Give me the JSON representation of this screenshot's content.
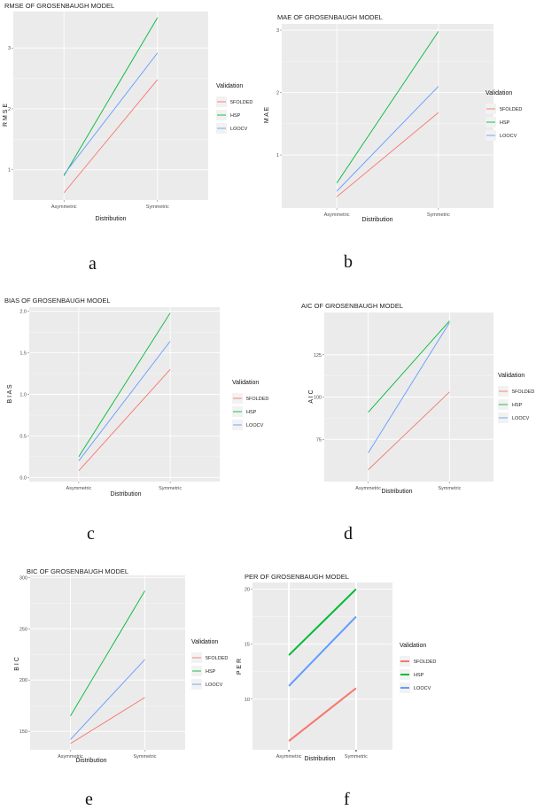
{
  "colors": {
    "FOLDED": "#f8766d",
    "HSP": "#00ba38",
    "LOOCV": "#619cff"
  },
  "chart_data": [
    {
      "type": "line",
      "title": "RMSE OF GROSENBAUGH MODEL",
      "xlabel": "Distribution",
      "ylabel": "R M S E",
      "categories": [
        "Asymmetric",
        "Symmetric"
      ],
      "ylim": [
        0.5,
        3.6
      ],
      "yticks": [
        1,
        2,
        3
      ],
      "yticklabels": [
        "1",
        "2",
        "3"
      ],
      "legend_title": "Validation",
      "series": [
        {
          "name": "5FOLDED",
          "values": [
            0.62,
            2.48
          ]
        },
        {
          "name": "HSP",
          "values": [
            0.9,
            3.5
          ]
        },
        {
          "name": "LOOCV",
          "values": [
            0.92,
            2.92
          ]
        }
      ],
      "caption": "a"
    },
    {
      "type": "line",
      "title": "MAE OF GROSENBAUGH MODEL",
      "xlabel": "Distribution",
      "ylabel": "M A E",
      "categories": [
        "Asymmetric",
        "Symmetric"
      ],
      "ylim": [
        0.15,
        3.1
      ],
      "yticks": [
        1,
        2,
        3
      ],
      "yticklabels": [
        "1",
        "2",
        "3"
      ],
      "legend_title": "Validation",
      "series": [
        {
          "name": "5FOLDED",
          "values": [
            0.33,
            1.68
          ]
        },
        {
          "name": "HSP",
          "values": [
            0.55,
            2.98
          ]
        },
        {
          "name": "LOOCV",
          "values": [
            0.42,
            2.1
          ]
        }
      ],
      "caption": "b"
    },
    {
      "type": "line",
      "title": "BIAS OF GROSENBAUGH MODEL",
      "xlabel": "Distribution",
      "ylabel": "B I A S",
      "categories": [
        "Asymmetric",
        "Symmetric"
      ],
      "ylim": [
        -0.05,
        2.05
      ],
      "yticks": [
        0,
        0.5,
        1,
        1.5,
        2
      ],
      "yticklabels": [
        "0.0",
        "0.5",
        "1.0",
        "1.5",
        "2.0"
      ],
      "legend_title": "Validation",
      "series": [
        {
          "name": "5FOLDED",
          "values": [
            0.08,
            1.3
          ]
        },
        {
          "name": "HSP",
          "values": [
            0.25,
            1.98
          ]
        },
        {
          "name": "LOOCV",
          "values": [
            0.2,
            1.64
          ]
        }
      ],
      "caption": "c"
    },
    {
      "type": "line",
      "title": "AIC OF GROSENBAUGH MODEL",
      "xlabel": "Distribution",
      "ylabel": "A I C",
      "categories": [
        "Asymmetric",
        "Symmetric"
      ],
      "ylim": [
        50,
        150
      ],
      "yticks": [
        75,
        100,
        125
      ],
      "yticklabels": [
        "75",
        "100",
        "125"
      ],
      "legend_title": "Validation",
      "series": [
        {
          "name": "5FOLDED",
          "values": [
            57,
            103
          ]
        },
        {
          "name": "HSP",
          "values": [
            91,
            145
          ]
        },
        {
          "name": "LOOCV",
          "values": [
            67,
            144
          ]
        }
      ],
      "caption": "d"
    },
    {
      "type": "line",
      "title": "BIC OF GROSENBAUGH MODEL",
      "xlabel": "Distribution",
      "ylabel": "B I C",
      "categories": [
        "Asymmetric",
        "Symmetric"
      ],
      "ylim": [
        132,
        302
      ],
      "yticks": [
        150,
        200,
        250,
        300
      ],
      "yticklabels": [
        "150",
        "200",
        "250",
        "300"
      ],
      "legend_title": "Validation",
      "series": [
        {
          "name": "5FOLDED",
          "values": [
            138,
            183
          ]
        },
        {
          "name": "HSP",
          "values": [
            165,
            287
          ]
        },
        {
          "name": "LOOCV",
          "values": [
            142,
            220
          ]
        }
      ],
      "caption": "e"
    },
    {
      "type": "line",
      "title": "PER OF GROSENBAUGH MODEL",
      "xlabel": "Distribution",
      "ylabel": "P E R",
      "categories": [
        "Asymmetric",
        "Symmetric"
      ],
      "ylim": [
        5.4,
        20.6
      ],
      "yticks": [
        10,
        15,
        20
      ],
      "yticklabels": [
        "10",
        "15",
        "20"
      ],
      "legend_title": "Validation",
      "series": [
        {
          "name": "5FOLDED",
          "values": [
            6.2,
            11
          ]
        },
        {
          "name": "HSP",
          "values": [
            14,
            20
          ]
        },
        {
          "name": "LOOCV",
          "values": [
            11.2,
            17.5
          ]
        }
      ],
      "caption": "f"
    }
  ]
}
